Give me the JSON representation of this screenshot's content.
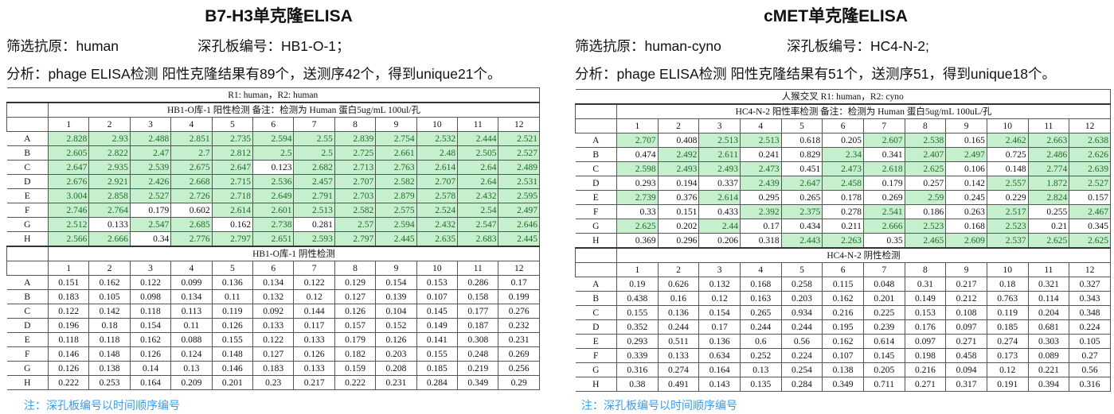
{
  "colors": {
    "positive_fill": "#c6efce",
    "positive_text": "#1e6b2a",
    "note": "#3a9ce8"
  },
  "columns": [
    "1",
    "2",
    "3",
    "4",
    "5",
    "6",
    "7",
    "8",
    "9",
    "10",
    "11",
    "12"
  ],
  "rows": [
    "A",
    "B",
    "C",
    "D",
    "E",
    "F",
    "G",
    "H"
  ],
  "left": {
    "title": "B7-H3单克隆ELISA",
    "antigen": "筛选抗原：human",
    "plate": "深孔板编号：HB1-O-1；",
    "analysis": "分析：phage ELISA检测 阳性克隆结果有89个，送测序42个，得到unique21个。",
    "table_caption": "R1: human，R2: human",
    "positive_title": "HB1-O库-1 阳性检测 备注：检测为 Human 蛋白5ug/mL 100ul/孔",
    "negative_title": "HB1-O库-1 阴性检测",
    "positive": [
      [
        "2.828",
        "2.93",
        "2.488",
        "2.851",
        "2.735",
        "2.594",
        "2.55",
        "2.839",
        "2.754",
        "2.532",
        "2.444",
        "2.521"
      ],
      [
        "2.605",
        "2.822",
        "2.47",
        "2.7",
        "2.812",
        "2.5",
        "2.5",
        "2.725",
        "2.661",
        "2.48",
        "2.505",
        "2.527"
      ],
      [
        "2.647",
        "2.935",
        "2.539",
        "2.675",
        "2.647",
        "0.123",
        "2.682",
        "2.713",
        "2.763",
        "2.614",
        "2.64",
        "2.489"
      ],
      [
        "2.676",
        "2.921",
        "2.426",
        "2.668",
        "2.715",
        "2.536",
        "2.457",
        "2.707",
        "2.582",
        "2.707",
        "2.64",
        "2.531"
      ],
      [
        "3.004",
        "2.858",
        "2.527",
        "2.726",
        "2.718",
        "2.649",
        "2.791",
        "2.703",
        "2.879",
        "2.578",
        "2.432",
        "2.595"
      ],
      [
        "2.746",
        "2.764",
        "0.179",
        "0.602",
        "2.614",
        "2.601",
        "2.513",
        "2.582",
        "2.575",
        "2.524",
        "2.54",
        "2.497"
      ],
      [
        "2.512",
        "0.133",
        "2.547",
        "2.685",
        "0.162",
        "2.738",
        "0.281",
        "2.57",
        "2.594",
        "2.432",
        "2.547",
        "2.646"
      ],
      [
        "2.566",
        "2.666",
        "0.34",
        "2.776",
        "2.797",
        "2.651",
        "2.593",
        "2.797",
        "2.445",
        "2.635",
        "2.683",
        "2.445"
      ]
    ],
    "negative": [
      [
        "0.151",
        "0.162",
        "0.122",
        "0.099",
        "0.136",
        "0.134",
        "0.122",
        "0.129",
        "0.154",
        "0.153",
        "0.286",
        "0.17"
      ],
      [
        "0.183",
        "0.105",
        "0.098",
        "0.134",
        "0.11",
        "0.132",
        "0.12",
        "0.127",
        "0.139",
        "0.107",
        "0.158",
        "0.199"
      ],
      [
        "0.122",
        "0.142",
        "0.118",
        "0.113",
        "0.119",
        "0.092",
        "0.144",
        "0.126",
        "0.104",
        "0.145",
        "0.177",
        "0.276"
      ],
      [
        "0.196",
        "0.18",
        "0.154",
        "0.11",
        "0.126",
        "0.133",
        "0.117",
        "0.157",
        "0.152",
        "0.149",
        "0.187",
        "0.232"
      ],
      [
        "0.118",
        "0.118",
        "0.162",
        "0.088",
        "0.155",
        "0.122",
        "0.133",
        "0.179",
        "0.126",
        "0.141",
        "0.308",
        "0.231"
      ],
      [
        "0.146",
        "0.148",
        "0.126",
        "0.124",
        "0.148",
        "0.127",
        "0.126",
        "0.182",
        "0.203",
        "0.155",
        "0.248",
        "0.269"
      ],
      [
        "0.126",
        "0.138",
        "0.14",
        "0.13",
        "0.146",
        "0.183",
        "0.133",
        "0.159",
        "0.208",
        "0.185",
        "0.219",
        "0.256"
      ],
      [
        "0.222",
        "0.253",
        "0.164",
        "0.209",
        "0.201",
        "0.23",
        "0.217",
        "0.222",
        "0.231",
        "0.284",
        "0.349",
        "0.29"
      ]
    ],
    "note": "注：深孔板编号以时间顺序编号"
  },
  "right": {
    "title": "cMET单克隆ELISA",
    "antigen": "筛选抗原：human-cyno",
    "plate": "深孔板编号：HC4-N-2;",
    "analysis": "分析：phage ELISA检测 阳性克隆结果有51个，送测序51，得到unique18个。",
    "table_caption": "人猴交叉 R1: human，R2: cyno",
    "positive_title": "HC4-N-2 阳性率检测  备注：检测为 Human 蛋白5ug/mL 100uL/孔",
    "negative_title": "HC4-N-2 阴性检测",
    "positive": [
      [
        "2.707",
        "0.408",
        "2.513",
        "2.513",
        "0.618",
        "0.205",
        "2.607",
        "2.538",
        "0.165",
        "2.462",
        "2.663",
        "2.638"
      ],
      [
        "0.474",
        "2.492",
        "2.611",
        "0.241",
        "0.829",
        "2.34",
        "0.341",
        "2.407",
        "2.497",
        "0.725",
        "2.486",
        "2.626"
      ],
      [
        "2.598",
        "2.493",
        "2.493",
        "2.473",
        "0.451",
        "2.473",
        "2.618",
        "2.625",
        "0.106",
        "0.148",
        "2.774",
        "2.639"
      ],
      [
        "0.293",
        "0.194",
        "0.337",
        "2.439",
        "2.647",
        "2.458",
        "0.179",
        "0.257",
        "0.142",
        "2.557",
        "1.872",
        "2.527"
      ],
      [
        "2.739",
        "0.376",
        "2.614",
        "0.295",
        "0.265",
        "0.178",
        "0.269",
        "2.59",
        "0.245",
        "0.229",
        "2.824",
        "0.157"
      ],
      [
        "0.33",
        "0.151",
        "0.433",
        "2.392",
        "2.375",
        "0.278",
        "2.541",
        "0.186",
        "0.263",
        "2.517",
        "0.255",
        "2.467"
      ],
      [
        "2.625",
        "0.202",
        "2.44",
        "0.17",
        "0.434",
        "0.211",
        "2.666",
        "2.523",
        "0.168",
        "2.523",
        "0.21",
        "0.345"
      ],
      [
        "0.369",
        "0.296",
        "0.206",
        "0.318",
        "2.443",
        "2.263",
        "0.35",
        "2.465",
        "2.609",
        "2.537",
        "2.625",
        "2.625"
      ]
    ],
    "negative": [
      [
        "0.19",
        "0.626",
        "0.132",
        "0.168",
        "0.258",
        "0.115",
        "0.048",
        "0.31",
        "0.217",
        "0.18",
        "0.321",
        "0.327"
      ],
      [
        "0.438",
        "0.16",
        "0.12",
        "0.163",
        "0.203",
        "0.162",
        "0.201",
        "0.149",
        "0.212",
        "0.763",
        "0.114",
        "0.343"
      ],
      [
        "0.155",
        "0.136",
        "0.154",
        "0.265",
        "0.934",
        "0.216",
        "0.225",
        "0.153",
        "0.108",
        "0.119",
        "0.204",
        "0.348"
      ],
      [
        "0.352",
        "0.244",
        "0.17",
        "0.244",
        "0.244",
        "0.195",
        "0.239",
        "0.176",
        "0.097",
        "0.185",
        "0.681",
        "0.224"
      ],
      [
        "0.293",
        "0.511",
        "0.136",
        "0.6",
        "0.56",
        "0.162",
        "0.614",
        "0.097",
        "0.271",
        "0.274",
        "0.303",
        "0.105"
      ],
      [
        "0.339",
        "0.133",
        "0.634",
        "0.252",
        "0.224",
        "0.107",
        "0.145",
        "0.198",
        "0.458",
        "0.173",
        "0.089",
        "0.27"
      ],
      [
        "0.316",
        "0.274",
        "0.164",
        "0.13",
        "0.254",
        "0.138",
        "0.205",
        "0.216",
        "0.094",
        "0.12",
        "0.221",
        "0.56"
      ],
      [
        "0.38",
        "0.491",
        "0.143",
        "0.135",
        "0.284",
        "0.349",
        "0.711",
        "0.271",
        "0.317",
        "0.191",
        "0.394",
        "0.316"
      ]
    ],
    "note": "注：深孔板编号以时间顺序编号"
  }
}
